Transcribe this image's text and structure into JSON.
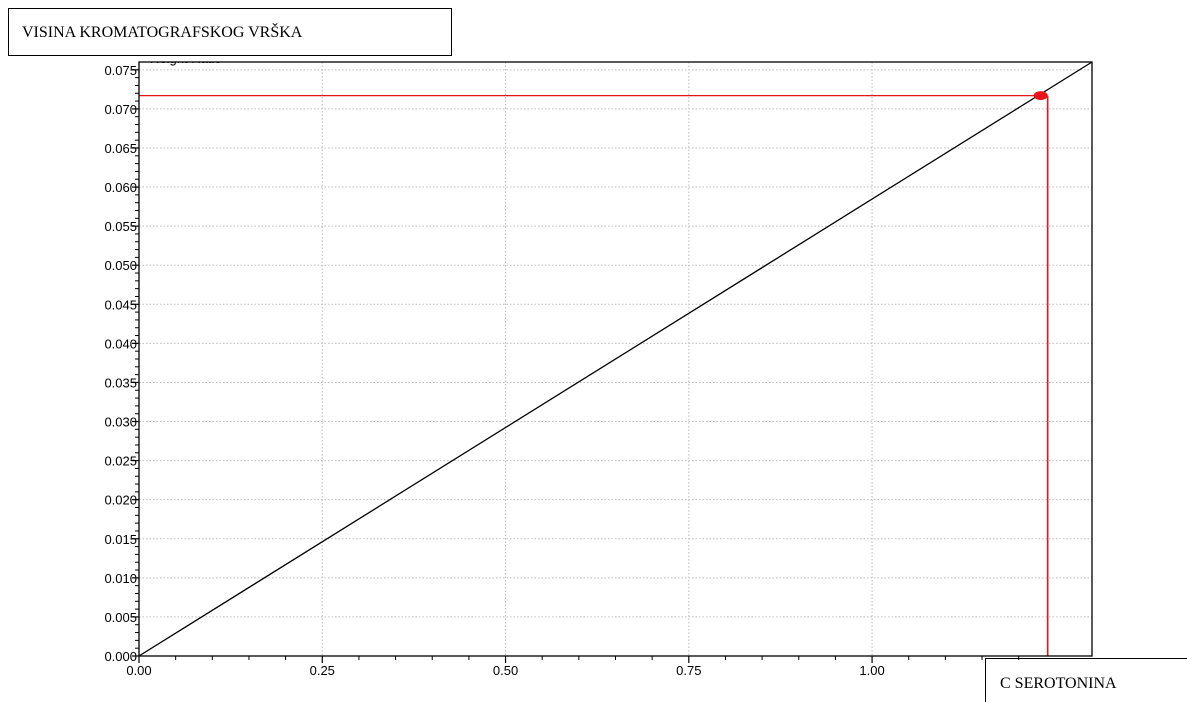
{
  "chart_data": {
    "type": "line",
    "title": "",
    "ylabel_partial": "Height Ratio",
    "ylabel_box": "VISINA KROMATOGRAFSKOG VRŠKA",
    "xlabel_box": "C SEROTONINA",
    "xlim": [
      0.0,
      1.3
    ],
    "ylim": [
      0.0,
      0.076
    ],
    "x_ticks": [
      "0.00",
      "0.25",
      "0.50",
      "0.75",
      "1.00"
    ],
    "y_ticks": [
      "0.000",
      "0.005",
      "0.010",
      "0.015",
      "0.020",
      "0.025",
      "0.030",
      "0.035",
      "0.040",
      "0.045",
      "0.050",
      "0.055",
      "0.060",
      "0.065",
      "0.070",
      "0.075"
    ],
    "grid": true,
    "series": [
      {
        "x": [
          0.0,
          1.3
        ],
        "y": [
          0.0,
          0.076
        ],
        "color": "#000000"
      }
    ],
    "marked_point": {
      "x": 1.23,
      "y": 0.0717,
      "color": "#e8141c"
    }
  }
}
